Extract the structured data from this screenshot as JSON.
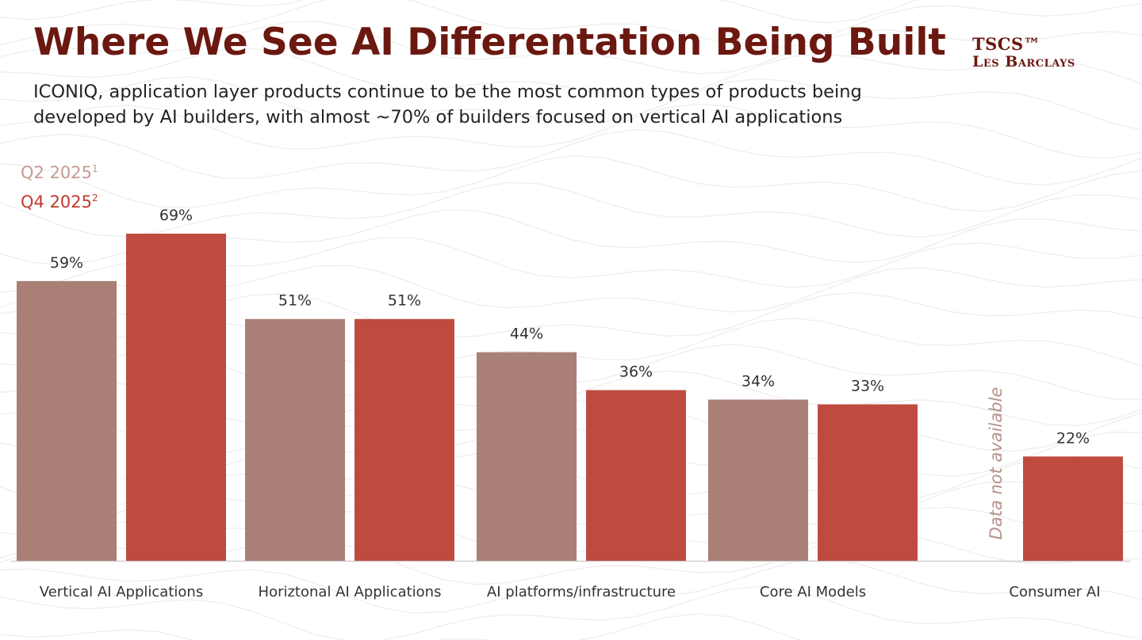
{
  "header": {
    "title": "Where We See AI Differentation Being Built",
    "subtitle": "ICONIQ, application layer products continue to be the most common types of products being developed by AI builders, with almost ~70% of builders focused on vertical AI applications"
  },
  "brand": {
    "line1": "TSCS™",
    "line2": "Les Barclays"
  },
  "legend": {
    "items": [
      {
        "label": "Q2 2025",
        "sup": "1",
        "color": "#c49b92"
      },
      {
        "label": "Q4 2025",
        "sup": "2",
        "color": "#c0392b"
      }
    ]
  },
  "note": {
    "text": "Data not available"
  },
  "colors": {
    "title": "#6b1810",
    "q2_bar": "#a97f76",
    "q4_bar": "#bf4b40",
    "axis": "#cfcfcf"
  },
  "chart_data": {
    "type": "bar",
    "categories": [
      "Vertical AI Applications",
      "Horiztonal AI Applications",
      "AI platforms/infrastructure",
      "Core AI Models",
      "Consumer AI"
    ],
    "series": [
      {
        "name": "Q2 2025",
        "values": [
          59,
          51,
          44,
          34,
          null
        ],
        "labels": [
          "59%",
          "51%",
          "44%",
          "34%",
          ""
        ]
      },
      {
        "name": "Q4 2025",
        "values": [
          69,
          51,
          36,
          33,
          22
        ],
        "labels": [
          "69%",
          "51%",
          "36%",
          "33%",
          "22%"
        ]
      }
    ],
    "title": "Where We See AI Differentation Being Built",
    "xlabel": "",
    "ylabel": "",
    "ylim": [
      0,
      69
    ],
    "grid": false,
    "legend_position": "top-left"
  }
}
